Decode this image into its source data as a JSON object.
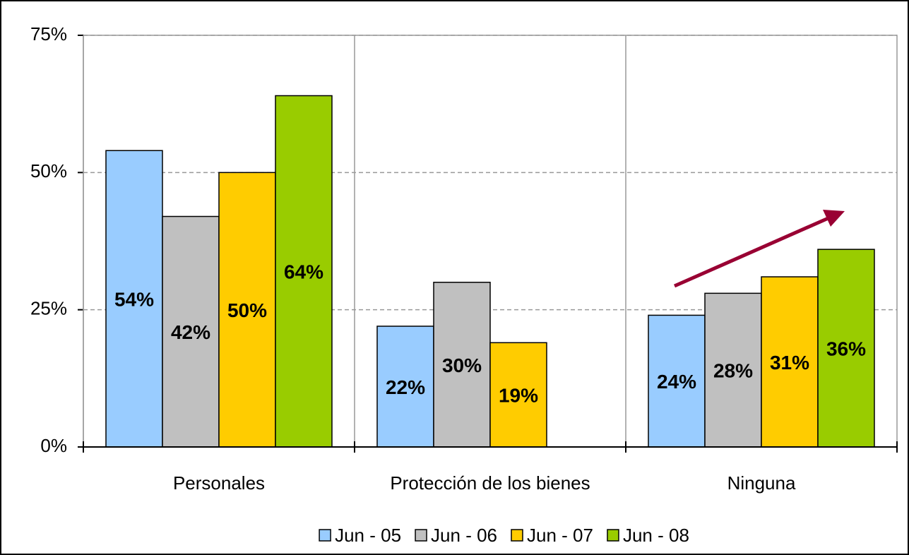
{
  "chart_data": {
    "type": "bar",
    "categories": [
      "Personales",
      "Protección de los bienes",
      "Ninguna"
    ],
    "series": [
      {
        "name": "Jun - 05",
        "color": "#99ccff",
        "values": [
          54,
          22,
          24
        ],
        "value_labels": [
          "54%",
          "22%",
          "24%"
        ]
      },
      {
        "name": "Jun - 06",
        "color": "#c0c0c0",
        "values": [
          42,
          30,
          28
        ],
        "value_labels": [
          "42%",
          "30%",
          "28%"
        ]
      },
      {
        "name": "Jun - 07",
        "color": "#ffcc00",
        "values": [
          50,
          19,
          31
        ],
        "value_labels": [
          "50%",
          "19%",
          "31%"
        ]
      },
      {
        "name": "Jun - 08",
        "color": "#99cc00",
        "values": [
          64,
          null,
          36
        ],
        "value_labels": [
          "64%",
          null,
          "36%"
        ]
      }
    ],
    "ylim": [
      0,
      75
    ],
    "yticks": [
      {
        "value": 0,
        "label": "0%"
      },
      {
        "value": 25,
        "label": "25%"
      },
      {
        "value": 50,
        "label": "50%"
      },
      {
        "value": 75,
        "label": "75%"
      }
    ],
    "grid": true,
    "legend": "bottom"
  }
}
